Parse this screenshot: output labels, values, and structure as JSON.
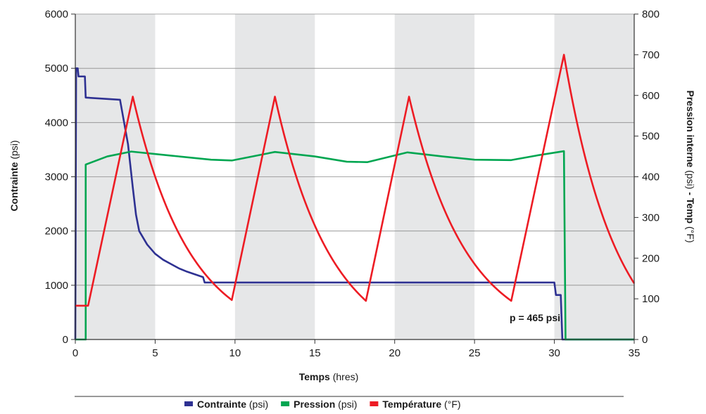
{
  "chart_data": {
    "type": "line",
    "xlabel": {
      "bold": "Temps",
      "unit": "(hres)"
    },
    "ylabel_left": {
      "bold": "Contrainte",
      "unit": "(psi)"
    },
    "ylabel_right": {
      "bold1": "Pression interne",
      "unit1": "(psi)",
      "sep": " - ",
      "bold2": "Temp",
      "unit2": "(°F)"
    },
    "xlim": [
      0,
      35
    ],
    "ylim_left": [
      0,
      6000
    ],
    "ylim_right": [
      0,
      800
    ],
    "x_ticks": [
      "0",
      "5",
      "10",
      "15",
      "20",
      "25",
      "30",
      "35"
    ],
    "y_left_ticks": [
      "0",
      "1000",
      "2000",
      "3000",
      "4000",
      "5000",
      "6000"
    ],
    "y_right_ticks": [
      "0",
      "100",
      "200",
      "300",
      "400",
      "500",
      "600",
      "700",
      "800"
    ],
    "grid": "horizontal",
    "shaded_bands": [
      [
        0,
        5
      ],
      [
        10,
        15
      ],
      [
        20,
        25
      ],
      [
        30,
        35
      ]
    ],
    "band_color": "#e6e7e8",
    "annotation": {
      "text": "p = 465 psi",
      "x": 27.2,
      "y_left": 400
    },
    "legend_position": "bottom",
    "series": [
      {
        "name": "Contrainte",
        "unit": "(psi)",
        "axis": "left",
        "color": "#2e3192",
        "points": [
          [
            0,
            0
          ],
          [
            0.05,
            5000
          ],
          [
            0.15,
            5000
          ],
          [
            0.2,
            4850
          ],
          [
            0.6,
            4850
          ],
          [
            0.65,
            4460
          ],
          [
            2.8,
            4420
          ],
          [
            3.3,
            3600
          ],
          [
            3.6,
            2800
          ],
          [
            3.8,
            2300
          ],
          [
            4.0,
            2000
          ],
          [
            4.5,
            1750
          ],
          [
            5.0,
            1580
          ],
          [
            5.5,
            1470
          ],
          [
            6.0,
            1390
          ],
          [
            6.5,
            1310
          ],
          [
            7.0,
            1250
          ],
          [
            7.5,
            1200
          ],
          [
            8.0,
            1150
          ],
          [
            8.1,
            1050
          ],
          [
            30.0,
            1050
          ],
          [
            30.1,
            820
          ],
          [
            30.4,
            820
          ],
          [
            30.5,
            0
          ],
          [
            35,
            0
          ]
        ]
      },
      {
        "name": "Pression",
        "unit": "(psi)",
        "axis": "right",
        "color": "#00a651",
        "points": [
          [
            0,
            0
          ],
          [
            0.65,
            0
          ],
          [
            0.65,
            430
          ],
          [
            2.0,
            450
          ],
          [
            3.5,
            462
          ],
          [
            6.0,
            452
          ],
          [
            8.5,
            442
          ],
          [
            9.8,
            440
          ],
          [
            12.5,
            461
          ],
          [
            15.0,
            450
          ],
          [
            17.0,
            437
          ],
          [
            18.3,
            436
          ],
          [
            20.8,
            460
          ],
          [
            23.0,
            450
          ],
          [
            25.0,
            442
          ],
          [
            27.3,
            441
          ],
          [
            29.0,
            453
          ],
          [
            30.6,
            463
          ],
          [
            30.7,
            0
          ],
          [
            35,
            0
          ]
        ]
      },
      {
        "name": "Température",
        "unit": "(°F)",
        "axis": "right",
        "color": "#ed1c24",
        "segments": [
          {
            "kind": "line",
            "points": [
              [
                0,
                83
              ],
              [
                0.8,
                83
              ],
              [
                3.6,
                597
              ]
            ]
          },
          {
            "kind": "decay",
            "t0": 3.6,
            "t1": 9.8,
            "start": 597,
            "end": 97,
            "tau": 0.28
          },
          {
            "kind": "line",
            "points": [
              [
                9.8,
                97
              ],
              [
                12.5,
                597
              ]
            ]
          },
          {
            "kind": "decay",
            "t0": 12.5,
            "t1": 18.2,
            "start": 597,
            "end": 95,
            "tau": 0.28
          },
          {
            "kind": "line",
            "points": [
              [
                18.2,
                95
              ],
              [
                20.9,
                597
              ]
            ]
          },
          {
            "kind": "decay",
            "t0": 20.9,
            "t1": 27.3,
            "start": 597,
            "end": 95,
            "tau": 0.28
          },
          {
            "kind": "line",
            "points": [
              [
                27.3,
                95
              ],
              [
                30.6,
                700
              ]
            ]
          },
          {
            "kind": "decay",
            "t0": 30.6,
            "t1": 35.0,
            "start": 700,
            "end": 138,
            "tau": 0.3
          }
        ]
      }
    ]
  }
}
